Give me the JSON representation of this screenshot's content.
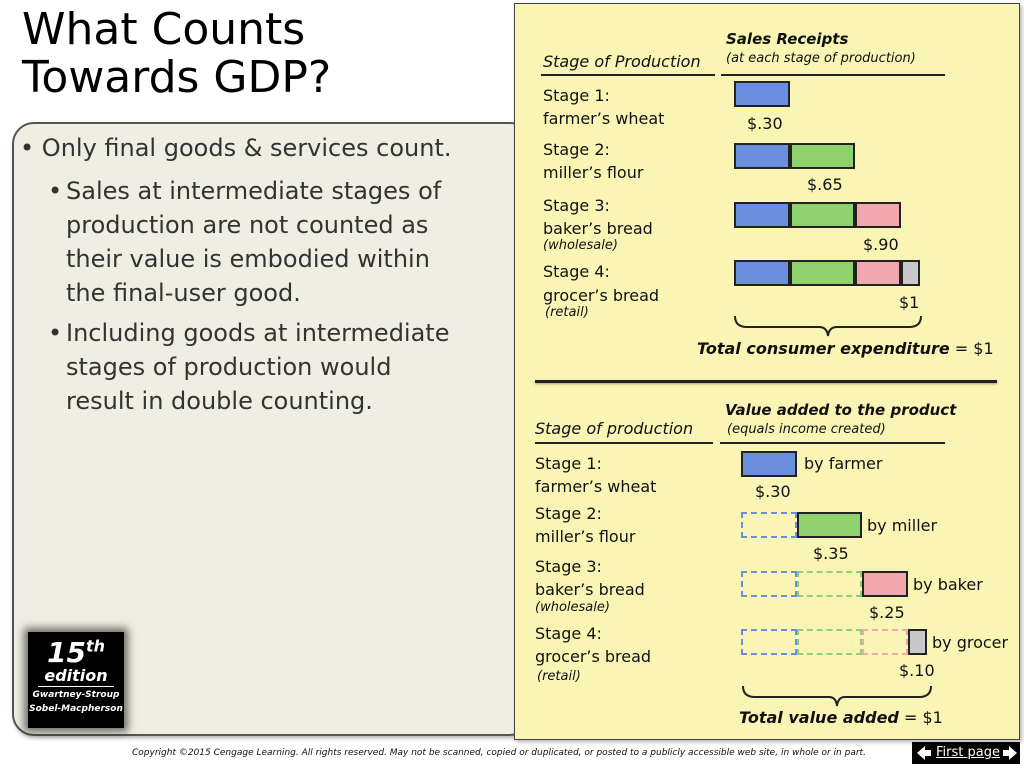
{
  "title_line1": "What Counts",
  "title_line2": "Towards GDP?",
  "bullets": {
    "main": "Only final goods & services count.",
    "sub1": [
      "Sales at intermediate stages of",
      "production are not counted as",
      "their value is embodied within",
      "the final-user good."
    ],
    "sub2": [
      "Including goods at intermediate",
      "stages of production would",
      "result in double counting."
    ]
  },
  "badge": {
    "edition_number": "15",
    "edition_suffix": "th",
    "edition_word": "edition",
    "author1": "Gwartney-Stroup",
    "author2": "Sobel-Macpherson"
  },
  "top_chart": {
    "stage_header": "Stage of Production",
    "receipts_header": "Sales Receipts",
    "receipts_sub": "(at each stage of production)",
    "stages": [
      {
        "line1": "Stage 1:",
        "line2": "farmer’s wheat",
        "note": "",
        "value": "$.30"
      },
      {
        "line1": "Stage 2:",
        "line2": "miller’s flour",
        "note": "",
        "value": "$.65"
      },
      {
        "line1": "Stage 3:",
        "line2": "baker’s bread",
        "note": "(wholesale)",
        "value": "$.90"
      },
      {
        "line1": "Stage 4:",
        "line2": "grocer’s bread",
        "note": "(retail)",
        "value": "$1"
      }
    ],
    "total_label": "Total consumer expenditure",
    "total_value": "= $1"
  },
  "bottom_chart": {
    "stage_header": "Stage of production",
    "value_header": "Value added to the product",
    "value_sub": "(equals income created)",
    "stages": [
      {
        "line1": "Stage 1:",
        "line2": "farmer’s wheat",
        "note": "",
        "value": "$.30",
        "by": "by farmer"
      },
      {
        "line1": "Stage 2:",
        "line2": "miller’s flour",
        "note": "",
        "value": "$.35",
        "by": "by miller"
      },
      {
        "line1": "Stage 3:",
        "line2": "baker’s bread",
        "note": "(wholesale)",
        "value": "$.25",
        "by": "by baker"
      },
      {
        "line1": "Stage 4:",
        "line2": "grocer’s bread",
        "note": "(retail)",
        "value": "$.10",
        "by": "by grocer"
      }
    ],
    "total_label": "Total value added",
    "total_value": "= $1"
  },
  "chart_data": {
    "type": "bar",
    "title": "",
    "categories": [
      "Stage 1",
      "Stage 2",
      "Stage 3",
      "Stage 4"
    ],
    "series": [
      {
        "name": "Sales Receipts",
        "values": [
          0.3,
          0.65,
          0.9,
          1.0
        ]
      },
      {
        "name": "Value added to the product",
        "values": [
          0.3,
          0.35,
          0.25,
          0.1
        ]
      }
    ],
    "colors": [
      "#6a8fdc",
      "#8fd16c",
      "#f0a8ae",
      "#c8c8c8"
    ]
  },
  "footer": {
    "copyright": "Copyright ©2015 Cengage Learning. All rights reserved. May not be scanned, copied or duplicated, or posted to a publicly accessible web site, in whole or in part.",
    "first_page": "First page"
  }
}
